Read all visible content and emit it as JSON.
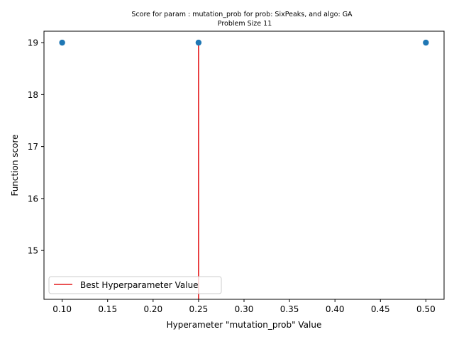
{
  "chart_data": {
    "type": "scatter",
    "title_lines": [
      "Score for param : mutation_prob for prob: SixPeaks, and algo: GA",
      "Problem Size 11"
    ],
    "xlabel": "Hyperameter \"mutation_prob\" Value",
    "ylabel": "Function score",
    "x": [
      0.1,
      0.25,
      0.5
    ],
    "y": [
      19,
      19,
      19
    ],
    "xlim": [
      0.08,
      0.52
    ],
    "ylim": [
      14.06,
      19.22
    ],
    "xticks": [
      0.1,
      0.15,
      0.2,
      0.25,
      0.3,
      0.35,
      0.4,
      0.45,
      0.5
    ],
    "xtick_labels": [
      "0.10",
      "0.15",
      "0.20",
      "0.25",
      "0.30",
      "0.35",
      "0.40",
      "0.45",
      "0.50"
    ],
    "yticks": [
      15,
      16,
      17,
      18,
      19
    ],
    "ytick_labels": [
      "15",
      "16",
      "17",
      "18",
      "19"
    ],
    "best_line": {
      "x": 0.25,
      "y_from": 14.06,
      "y_to": 19,
      "label": "Best Hyperparameter Value"
    },
    "legend_position": "lower-left",
    "grid": false,
    "colors": {
      "points": "#1f77b4",
      "best_line": "#e41a1c",
      "axes": "#000000"
    }
  }
}
